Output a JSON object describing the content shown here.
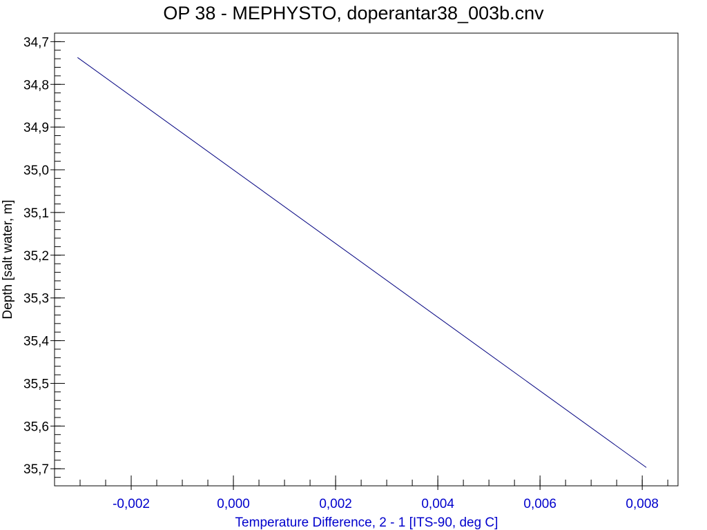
{
  "chart_data": {
    "type": "line",
    "title": "OP 38 - MEPHYSTO, doperantar38_003b.cnv",
    "xlabel": "Temperature Difference, 2 - 1 [ITS-90, deg C]",
    "ylabel": "Depth [salt water, m]",
    "xlim": [
      -0.0035,
      0.0087
    ],
    "ylim": [
      34.68,
      35.74
    ],
    "y_inverted": true,
    "x_ticks": [
      -0.002,
      0.0,
      0.002,
      0.004,
      0.006,
      0.008
    ],
    "x_tick_labels": [
      "-0,002",
      "0,000",
      "0,002",
      "0,004",
      "0,006",
      "0,008"
    ],
    "y_ticks": [
      34.7,
      34.8,
      34.9,
      35.0,
      35.1,
      35.2,
      35.3,
      35.4,
      35.5,
      35.6,
      35.7
    ],
    "y_tick_labels": [
      "34,7",
      "34,8",
      "34,9",
      "35,0",
      "35,1",
      "35,2",
      "35,3",
      "35,4",
      "35,5",
      "35,6",
      "35,7"
    ],
    "x_minor_step": 0.0005,
    "y_minor_step": 0.02,
    "grid": false,
    "series": [
      {
        "color": "#000080",
        "x": [
          -0.00305,
          0.00808
        ],
        "y": [
          34.737,
          35.697
        ]
      }
    ],
    "colors": {
      "x_axis_text": "#0000cc",
      "y_axis_text": "#000000",
      "frame": "#000000"
    }
  }
}
